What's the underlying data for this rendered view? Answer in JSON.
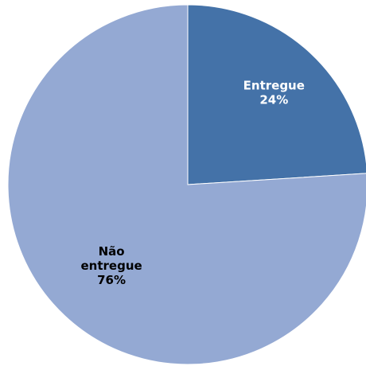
{
  "chart_data": {
    "type": "pie",
    "title": "",
    "slices": [
      {
        "label_lines": [
          "Entregue"
        ],
        "percent_text": "24%",
        "value": 24,
        "color": "#4472a8",
        "label_color": "#ffffff"
      },
      {
        "label_lines": [
          "Não",
          "entregue"
        ],
        "percent_text": "76%",
        "value": 76,
        "color": "#94a9d3",
        "label_color": "#000000"
      }
    ],
    "start_angle_deg": 0,
    "direction": "clockwise",
    "legend": "none"
  }
}
